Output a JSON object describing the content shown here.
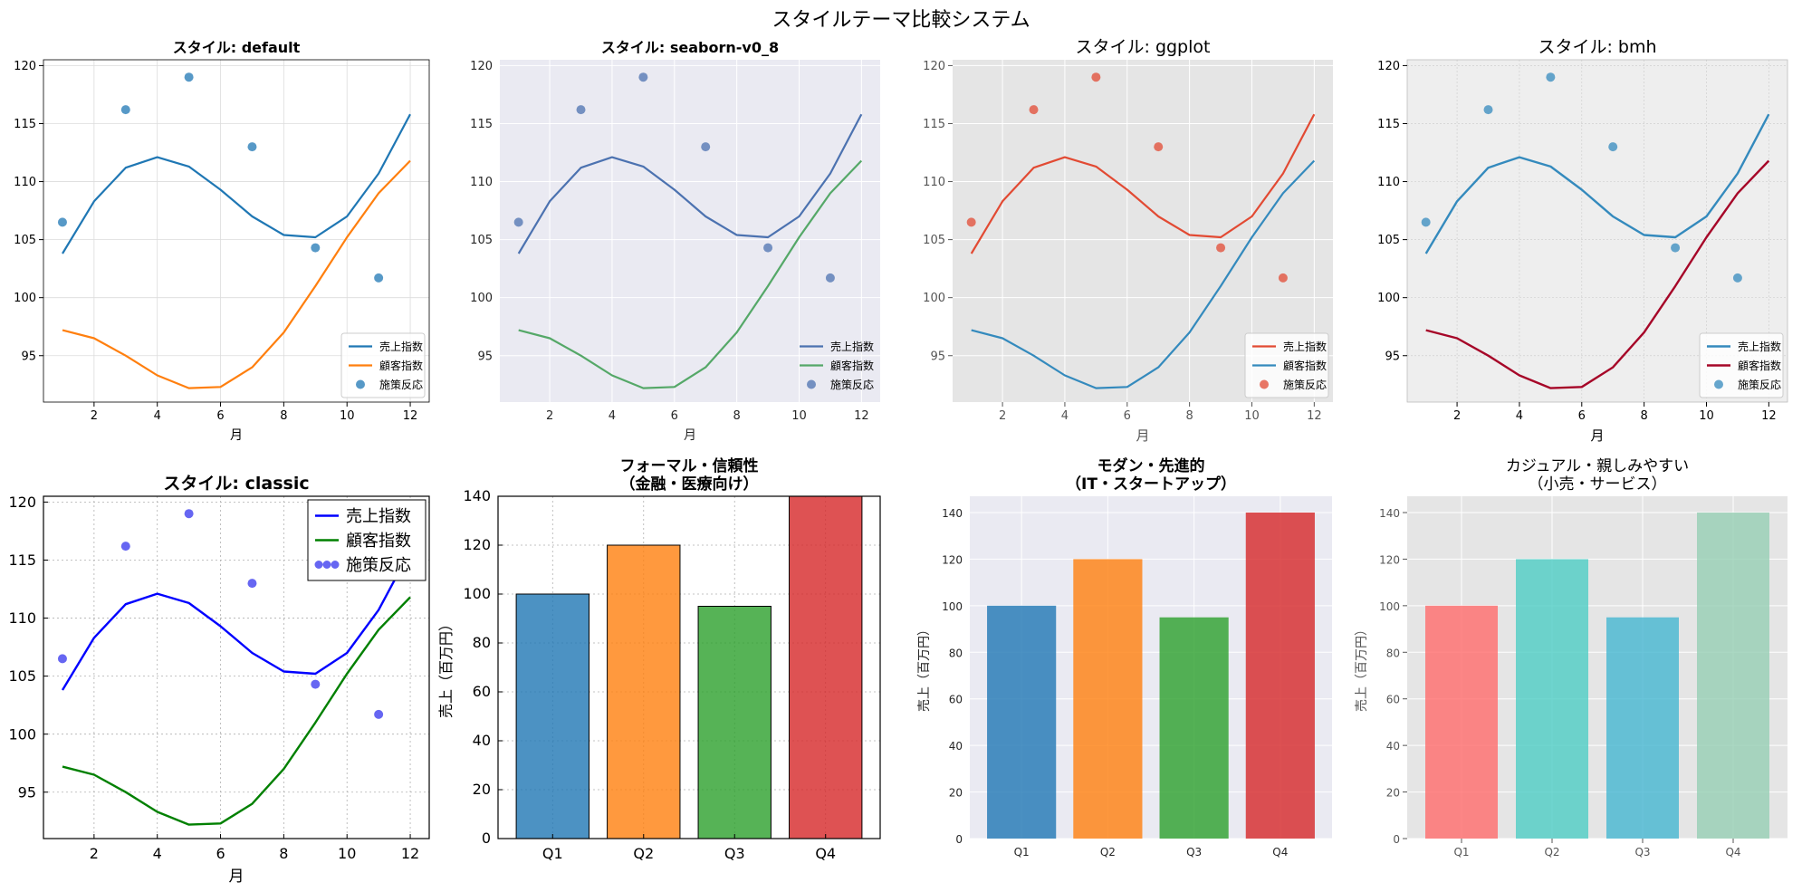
{
  "figure": {
    "title": "スタイルテーマ比較システム"
  },
  "chart_data": [
    {
      "type": "line",
      "style": "default",
      "title": "スタイル: default",
      "xlabel": "月",
      "ylabel": "",
      "xlim": [
        0.4,
        12.6
      ],
      "ylim": [
        91,
        120.5
      ],
      "xticks": [
        2,
        4,
        6,
        8,
        10,
        12
      ],
      "yticks": [
        95,
        100,
        105,
        110,
        115,
        120
      ],
      "legend_position": "lower-right",
      "series": [
        {
          "name": "売上指数",
          "kind": "line",
          "color": "#1f77b4",
          "x": [
            1,
            2,
            3,
            4,
            5,
            6,
            7,
            8,
            9,
            10,
            11,
            12
          ],
          "values": [
            103.8,
            108.3,
            111.2,
            112.1,
            111.3,
            109.3,
            107.0,
            105.4,
            105.2,
            107.0,
            110.7,
            115.8
          ]
        },
        {
          "name": "顧客指数",
          "kind": "line",
          "color": "#ff7f0e",
          "x": [
            1,
            2,
            3,
            4,
            5,
            6,
            7,
            8,
            9,
            10,
            11,
            12
          ],
          "values": [
            97.2,
            96.5,
            95.0,
            93.3,
            92.2,
            92.3,
            94.0,
            97.0,
            101.0,
            105.2,
            109.0,
            111.8
          ]
        },
        {
          "name": "施策反応",
          "kind": "scatter",
          "color": "#1f77b4",
          "x": [
            1,
            3,
            5,
            7,
            9,
            11
          ],
          "values": [
            106.5,
            116.2,
            119.0,
            113.0,
            104.3,
            101.7
          ]
        }
      ]
    },
    {
      "type": "line",
      "style": "seaborn-v0_8",
      "title": "スタイル: seaborn-v0_8",
      "xlabel": "月",
      "ylabel": "",
      "xlim": [
        0.4,
        12.6
      ],
      "ylim": [
        91,
        120.5
      ],
      "xticks": [
        2,
        4,
        6,
        8,
        10,
        12
      ],
      "yticks": [
        95,
        100,
        105,
        110,
        115,
        120
      ],
      "legend_position": "lower-right",
      "series": [
        {
          "name": "売上指数",
          "kind": "line",
          "color": "#4c72b0",
          "x": [
            1,
            2,
            3,
            4,
            5,
            6,
            7,
            8,
            9,
            10,
            11,
            12
          ],
          "values": [
            103.8,
            108.3,
            111.2,
            112.1,
            111.3,
            109.3,
            107.0,
            105.4,
            105.2,
            107.0,
            110.7,
            115.8
          ]
        },
        {
          "name": "顧客指数",
          "kind": "line",
          "color": "#55a868",
          "x": [
            1,
            2,
            3,
            4,
            5,
            6,
            7,
            8,
            9,
            10,
            11,
            12
          ],
          "values": [
            97.2,
            96.5,
            95.0,
            93.3,
            92.2,
            92.3,
            94.0,
            97.0,
            101.0,
            105.2,
            109.0,
            111.8
          ]
        },
        {
          "name": "施策反応",
          "kind": "scatter",
          "color": "#4c72b0",
          "x": [
            1,
            3,
            5,
            7,
            9,
            11
          ],
          "values": [
            106.5,
            116.2,
            119.0,
            113.0,
            104.3,
            101.7
          ]
        }
      ]
    },
    {
      "type": "line",
      "style": "ggplot",
      "title": "スタイル: ggplot",
      "xlabel": "月",
      "ylabel": "",
      "xlim": [
        0.4,
        12.6
      ],
      "ylim": [
        91,
        120.5
      ],
      "xticks": [
        2,
        4,
        6,
        8,
        10,
        12
      ],
      "yticks": [
        95,
        100,
        105,
        110,
        115,
        120
      ],
      "legend_position": "lower-right",
      "series": [
        {
          "name": "売上指数",
          "kind": "line",
          "color": "#e24a33",
          "x": [
            1,
            2,
            3,
            4,
            5,
            6,
            7,
            8,
            9,
            10,
            11,
            12
          ],
          "values": [
            103.8,
            108.3,
            111.2,
            112.1,
            111.3,
            109.3,
            107.0,
            105.4,
            105.2,
            107.0,
            110.7,
            115.8
          ]
        },
        {
          "name": "顧客指数",
          "kind": "line",
          "color": "#348abd",
          "x": [
            1,
            2,
            3,
            4,
            5,
            6,
            7,
            8,
            9,
            10,
            11,
            12
          ],
          "values": [
            97.2,
            96.5,
            95.0,
            93.3,
            92.2,
            92.3,
            94.0,
            97.0,
            101.0,
            105.2,
            109.0,
            111.8
          ]
        },
        {
          "name": "施策反応",
          "kind": "scatter",
          "color": "#e24a33",
          "x": [
            1,
            3,
            5,
            7,
            9,
            11
          ],
          "values": [
            106.5,
            116.2,
            119.0,
            113.0,
            104.3,
            101.7
          ]
        }
      ]
    },
    {
      "type": "line",
      "style": "bmh",
      "title": "スタイル: bmh",
      "xlabel": "月",
      "ylabel": "",
      "xlim": [
        0.4,
        12.6
      ],
      "ylim": [
        91,
        120.5
      ],
      "xticks": [
        2,
        4,
        6,
        8,
        10,
        12
      ],
      "yticks": [
        95,
        100,
        105,
        110,
        115,
        120
      ],
      "legend_position": "lower-right",
      "series": [
        {
          "name": "売上指数",
          "kind": "line",
          "color": "#348abd",
          "x": [
            1,
            2,
            3,
            4,
            5,
            6,
            7,
            8,
            9,
            10,
            11,
            12
          ],
          "values": [
            103.8,
            108.3,
            111.2,
            112.1,
            111.3,
            109.3,
            107.0,
            105.4,
            105.2,
            107.0,
            110.7,
            115.8
          ]
        },
        {
          "name": "顧客指数",
          "kind": "line",
          "color": "#a60628",
          "x": [
            1,
            2,
            3,
            4,
            5,
            6,
            7,
            8,
            9,
            10,
            11,
            12
          ],
          "values": [
            97.2,
            96.5,
            95.0,
            93.3,
            92.2,
            92.3,
            94.0,
            97.0,
            101.0,
            105.2,
            109.0,
            111.8
          ]
        },
        {
          "name": "施策反応",
          "kind": "scatter",
          "color": "#348abd",
          "x": [
            1,
            3,
            5,
            7,
            9,
            11
          ],
          "values": [
            106.5,
            116.2,
            119.0,
            113.0,
            104.3,
            101.7
          ]
        }
      ]
    },
    {
      "type": "line",
      "style": "classic",
      "title": "スタイル: classic",
      "xlabel": "月",
      "ylabel": "",
      "xlim": [
        0.4,
        12.6
      ],
      "ylim": [
        91,
        120.5
      ],
      "xticks": [
        2,
        4,
        6,
        8,
        10,
        12
      ],
      "yticks": [
        95,
        100,
        105,
        110,
        115,
        120
      ],
      "legend_position": "upper-right",
      "series": [
        {
          "name": "売上指数",
          "kind": "line",
          "color": "#0000ff",
          "x": [
            1,
            2,
            3,
            4,
            5,
            6,
            7,
            8,
            9,
            10,
            11,
            12
          ],
          "values": [
            103.8,
            108.3,
            111.2,
            112.1,
            111.3,
            109.3,
            107.0,
            105.4,
            105.2,
            107.0,
            110.7,
            115.8
          ]
        },
        {
          "name": "顧客指数",
          "kind": "line",
          "color": "#008000",
          "x": [
            1,
            2,
            3,
            4,
            5,
            6,
            7,
            8,
            9,
            10,
            11,
            12
          ],
          "values": [
            97.2,
            96.5,
            95.0,
            93.3,
            92.2,
            92.3,
            94.0,
            97.0,
            101.0,
            105.2,
            109.0,
            111.8
          ]
        },
        {
          "name": "施策反応",
          "kind": "scatter",
          "color": "#3333ee",
          "x": [
            1,
            3,
            5,
            7,
            9,
            11
          ],
          "values": [
            106.5,
            116.2,
            119.0,
            113.0,
            104.3,
            101.7
          ]
        }
      ]
    },
    {
      "type": "bar",
      "style": "classic",
      "title": "フォーマル・信頼性\n（金融・医療向け）",
      "xlabel": "",
      "ylabel": "売上（百万円）",
      "ylim": [
        0,
        140
      ],
      "yticks": [
        0,
        20,
        40,
        60,
        80,
        100,
        120,
        140
      ],
      "categories": [
        "Q1",
        "Q2",
        "Q3",
        "Q4"
      ],
      "values": [
        100,
        120,
        95,
        140
      ],
      "colors": [
        "#1f77b4",
        "#ff7f0e",
        "#2ca02c",
        "#d62728"
      ]
    },
    {
      "type": "bar",
      "style": "seaborn-v0_8",
      "title": "モダン・先進的\n（IT・スタートアップ）",
      "xlabel": "",
      "ylabel": "売上（百万円）",
      "ylim": [
        0,
        147
      ],
      "yticks": [
        0,
        20,
        40,
        60,
        80,
        100,
        120,
        140
      ],
      "categories": [
        "Q1",
        "Q2",
        "Q3",
        "Q4"
      ],
      "values": [
        100,
        120,
        95,
        140
      ],
      "colors": [
        "#1f77b4",
        "#ff7f0e",
        "#2ca02c",
        "#d62728"
      ]
    },
    {
      "type": "bar",
      "style": "ggplot",
      "title": "カジュアル・親しみやすい\n（小売・サービス）",
      "xlabel": "",
      "ylabel": "売上（百万円）",
      "ylim": [
        0,
        147
      ],
      "yticks": [
        0,
        20,
        40,
        60,
        80,
        100,
        120,
        140
      ],
      "categories": [
        "Q1",
        "Q2",
        "Q3",
        "Q4"
      ],
      "values": [
        100,
        120,
        95,
        140
      ],
      "colors": [
        "#ff6b6b",
        "#4ecdc4",
        "#45b7d1",
        "#96ceb4"
      ]
    }
  ]
}
